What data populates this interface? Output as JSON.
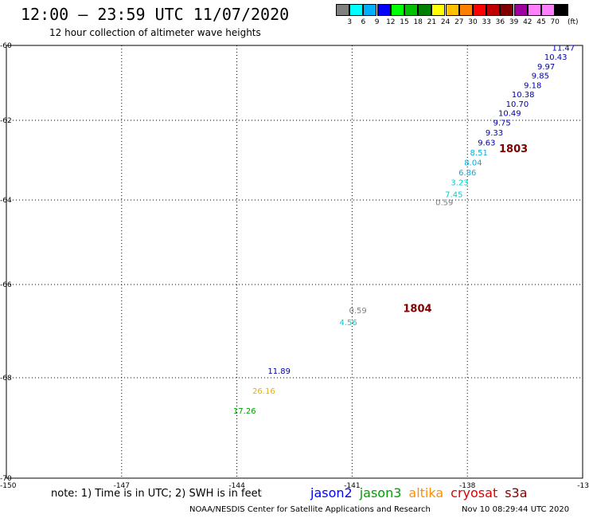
{
  "header": {
    "title": "12:00 – 23:59 UTC 11/07/2020",
    "subtitle": "12 hour collection of altimeter wave heights"
  },
  "color_scale": {
    "colors": [
      "#808080",
      "#00ffff",
      "#00b0ff",
      "#0000ff",
      "#00ff00",
      "#00c000",
      "#008000",
      "#ffff00",
      "#ffc000",
      "#ff8000",
      "#ff0000",
      "#c00000",
      "#800000",
      "#a000a0",
      "#ff80ff",
      "#ff80ff",
      "#000000"
    ],
    "labels": [
      "3",
      "6",
      "9",
      "12",
      "15",
      "18",
      "21",
      "24",
      "27",
      "30",
      "33",
      "36",
      "39",
      "42",
      "45",
      "70"
    ],
    "unit": "(ft)"
  },
  "map": {
    "lat_labels": [
      "-60",
      "-62",
      "-64",
      "-66",
      "-68",
      "-70"
    ],
    "lon_labels": [
      "-150",
      "-147",
      "-144",
      "-141",
      "-138",
      "-13"
    ]
  },
  "chart_data": {
    "type": "scatter",
    "x_range": [
      -150,
      -135
    ],
    "y_range": [
      -70,
      -60
    ],
    "points": [
      {
        "lon": -135.5,
        "lat": -60.05,
        "label": "11.47",
        "color": "#0000aa"
      },
      {
        "lon": -135.7,
        "lat": -60.3,
        "label": "10.43",
        "color": "#0000aa"
      },
      {
        "lon": -135.95,
        "lat": -60.55,
        "label": "9.97",
        "color": "#0000aa"
      },
      {
        "lon": -136.1,
        "lat": -60.8,
        "label": "9.85",
        "color": "#0000aa"
      },
      {
        "lon": -136.3,
        "lat": -61.05,
        "label": "9.18",
        "color": "#0000aa"
      },
      {
        "lon": -136.55,
        "lat": -61.3,
        "label": "10.38",
        "color": "#0000aa"
      },
      {
        "lon": -136.7,
        "lat": -61.55,
        "label": "10.70",
        "color": "#0000aa"
      },
      {
        "lon": -136.9,
        "lat": -61.8,
        "label": "10.49",
        "color": "#0000aa"
      },
      {
        "lon": -137.1,
        "lat": -62.05,
        "label": "9.75",
        "color": "#0000aa"
      },
      {
        "lon": -137.3,
        "lat": -62.3,
        "label": "9.33",
        "color": "#0000aa"
      },
      {
        "lon": -137.5,
        "lat": -62.55,
        "label": "9.63",
        "color": "#0000aa"
      },
      {
        "lon": -137.7,
        "lat": -62.8,
        "label": "8.51",
        "color": "#00b0e0"
      },
      {
        "lon": -137.85,
        "lat": -63.05,
        "label": "8.04",
        "color": "#00b0e0"
      },
      {
        "lon": -138.0,
        "lat": -63.3,
        "label": "6.86",
        "color": "#00b0e0"
      },
      {
        "lon": -138.2,
        "lat": -63.55,
        "label": "3.23",
        "color": "#00d0d0"
      },
      {
        "lon": -138.35,
        "lat": -63.85,
        "label": "7.45",
        "color": "#00d0d0"
      },
      {
        "lon": -138.6,
        "lat": -64.05,
        "label": "0.59",
        "color": "#808080"
      },
      {
        "lon": -140.85,
        "lat": -66.55,
        "label": "0.59",
        "color": "#808080"
      },
      {
        "lon": -141.1,
        "lat": -66.8,
        "label": "4.56",
        "color": "#00d0d0"
      },
      {
        "lon": -142.9,
        "lat": -67.85,
        "label": "11.89",
        "color": "#0000aa"
      },
      {
        "lon": -143.3,
        "lat": -68.25,
        "label": "26.16",
        "color": "#e8b000"
      },
      {
        "lon": -143.8,
        "lat": -68.65,
        "label": "17.26",
        "color": "#00a000"
      }
    ],
    "annotations": [
      {
        "lon": -136.8,
        "lat": -62.7,
        "label": "1803",
        "color": "#800000"
      },
      {
        "lon": -139.3,
        "lat": -66.5,
        "label": "1804",
        "color": "#800000"
      }
    ]
  },
  "footer": {
    "note": "note: 1) Time is in UTC; 2) SWH is in feet",
    "satellites": [
      {
        "name": "jason2",
        "color": "#0000ff"
      },
      {
        "name": "jason3",
        "color": "#00a000"
      },
      {
        "name": "altika",
        "color": "#ff9000"
      },
      {
        "name": "cryosat",
        "color": "#e00000"
      },
      {
        "name": "s3a",
        "color": "#800000"
      }
    ],
    "credit": "NOAA/NESDIS Center for Satellite Applications and Research",
    "timestamp": "Nov 10 08:29:44 UTC 2020"
  }
}
